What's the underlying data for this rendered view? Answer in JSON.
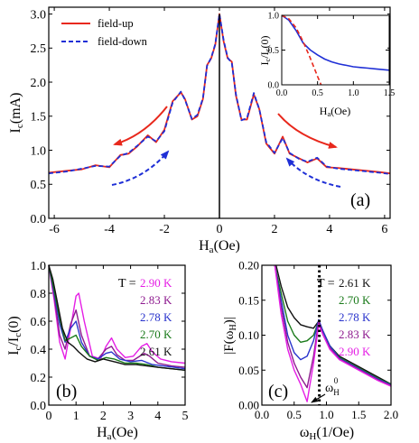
{
  "chart_data": [
    {
      "panel": "(a)",
      "type": "line",
      "xlabel": "Ha(Oe)",
      "ylabel": "Ic(mA)",
      "xlim": [
        -6.2,
        6.2
      ],
      "ylim": [
        0.0,
        3.1
      ],
      "xticks": [
        "-6",
        "-4",
        "-2",
        "0",
        "2",
        "4",
        "6"
      ],
      "xtick_values": [
        -6,
        -4,
        -2,
        0,
        2,
        4,
        6
      ],
      "yticks": [
        "0.0",
        "0.5",
        "1.0",
        "1.5",
        "2.0",
        "2.5",
        "3.0"
      ],
      "ytick_values": [
        0,
        0.5,
        1.0,
        1.5,
        2.0,
        2.5,
        3.0
      ],
      "legend": {
        "placement": "top-left",
        "entries": [
          "field-up",
          "field-down"
        ]
      },
      "series": [
        {
          "name": "field-up",
          "color": "#e8281c",
          "style": "solid",
          "x": [
            -6.2,
            -5.5,
            -5.0,
            -4.5,
            -4.0,
            -3.6,
            -3.3,
            -3.0,
            -2.6,
            -2.3,
            -2.0,
            -1.7,
            -1.4,
            -1.25,
            -1.0,
            -0.8,
            -0.6,
            -0.45,
            -0.3,
            -0.15,
            0.0,
            0.15,
            0.3,
            0.45,
            0.6,
            0.8,
            1.0,
            1.25,
            1.45,
            1.7,
            2.0,
            2.3,
            2.55,
            2.9,
            3.2,
            3.55,
            3.9,
            4.3,
            4.8,
            5.3,
            5.8,
            6.2
          ],
          "y": [
            0.67,
            0.7,
            0.72,
            0.78,
            0.75,
            0.93,
            0.95,
            1.05,
            1.22,
            1.12,
            1.3,
            1.72,
            1.85,
            1.75,
            1.45,
            1.5,
            1.75,
            2.25,
            2.35,
            2.55,
            3.0,
            2.6,
            2.35,
            2.3,
            1.8,
            1.45,
            1.45,
            1.82,
            1.6,
            1.1,
            0.95,
            1.2,
            0.95,
            0.88,
            0.82,
            0.88,
            0.75,
            0.74,
            0.72,
            0.7,
            0.68,
            0.66
          ]
        },
        {
          "name": "field-down",
          "color": "#1f2fd6",
          "style": "dashed",
          "x": [
            -6.2,
            -5.5,
            -5.0,
            -4.5,
            -4.0,
            -3.6,
            -3.3,
            -3.0,
            -2.6,
            -2.3,
            -2.0,
            -1.7,
            -1.4,
            -1.25,
            -1.0,
            -0.8,
            -0.6,
            -0.45,
            -0.3,
            -0.15,
            0.0,
            0.15,
            0.3,
            0.45,
            0.6,
            0.8,
            1.0,
            1.25,
            1.45,
            1.7,
            2.0,
            2.3,
            2.55,
            2.9,
            3.2,
            3.55,
            3.9,
            4.3,
            4.8,
            5.3,
            5.8,
            6.2
          ],
          "y": [
            0.66,
            0.69,
            0.73,
            0.77,
            0.76,
            0.92,
            0.96,
            1.06,
            1.2,
            1.13,
            1.28,
            1.7,
            1.86,
            1.74,
            1.46,
            1.52,
            1.76,
            2.24,
            2.36,
            2.56,
            3.0,
            2.62,
            2.36,
            2.28,
            1.82,
            1.44,
            1.47,
            1.84,
            1.6,
            1.12,
            0.96,
            1.18,
            0.96,
            0.87,
            0.83,
            0.89,
            0.76,
            0.73,
            0.71,
            0.69,
            0.67,
            0.65
          ]
        }
      ],
      "annotations": [
        "(a)"
      ],
      "inset": {
        "xlabel": "Ha(Oe)",
        "ylabel": "Ic/Ic(0)",
        "xlim": [
          0.0,
          1.5
        ],
        "ylim": [
          0.0,
          1.0
        ],
        "xticks": [
          "0.0",
          "0.5",
          "1.0",
          "1.5"
        ],
        "xtick_values": [
          0,
          0.5,
          1.0,
          1.5
        ],
        "yticks": [
          "0.0",
          "0.5",
          "1.0"
        ],
        "ytick_values": [
          0,
          0.5,
          1.0
        ],
        "series": [
          {
            "color": "#1f2fd6",
            "style": "solid",
            "x": [
              0.0,
              0.1,
              0.2,
              0.3,
              0.4,
              0.5,
              0.6,
              0.7,
              0.8,
              0.9,
              1.0,
              1.1,
              1.2,
              1.3,
              1.4,
              1.5
            ],
            "y": [
              1.0,
              0.93,
              0.78,
              0.6,
              0.5,
              0.43,
              0.37,
              0.33,
              0.3,
              0.28,
              0.26,
              0.25,
              0.24,
              0.23,
              0.22,
              0.21
            ]
          },
          {
            "color": "#e8281c",
            "style": "dashed",
            "x": [
              0.0,
              0.1,
              0.2,
              0.3,
              0.4,
              0.5,
              0.55
            ],
            "y": [
              1.0,
              0.95,
              0.82,
              0.62,
              0.38,
              0.12,
              0.0
            ]
          }
        ]
      }
    },
    {
      "panel": "(b)",
      "type": "line",
      "xlabel": "Ha(Oe)",
      "ylabel": "Ic/Ic(0)",
      "xlim": [
        0,
        5
      ],
      "ylim": [
        0.0,
        1.0
      ],
      "xticks": [
        "0",
        "1",
        "2",
        "3",
        "4",
        "5"
      ],
      "xtick_values": [
        0,
        1,
        2,
        3,
        4,
        5
      ],
      "yticks": [
        "0.0",
        "0.2",
        "0.4",
        "0.6",
        "0.8",
        "1.0"
      ],
      "ytick_values": [
        0,
        0.2,
        0.4,
        0.6,
        0.8,
        1.0
      ],
      "legend_title": "T =",
      "legend": {
        "placement": "top-right"
      },
      "series": [
        {
          "name": "2.90 K",
          "color": "#e51ee5",
          "x": [
            0,
            0.2,
            0.4,
            0.6,
            0.8,
            1.0,
            1.1,
            1.3,
            1.6,
            1.9,
            2.1,
            2.3,
            2.5,
            2.8,
            3.1,
            3.4,
            3.6,
            3.8,
            4.1,
            4.5,
            5.0
          ],
          "y": [
            1.0,
            0.75,
            0.45,
            0.33,
            0.55,
            0.78,
            0.8,
            0.6,
            0.35,
            0.33,
            0.42,
            0.48,
            0.4,
            0.34,
            0.35,
            0.42,
            0.44,
            0.38,
            0.33,
            0.31,
            0.3
          ]
        },
        {
          "name": "2.83 K",
          "color": "#8e1b8f",
          "x": [
            0,
            0.2,
            0.4,
            0.6,
            0.8,
            1.0,
            1.2,
            1.5,
            1.8,
            2.1,
            2.3,
            2.5,
            2.8,
            3.1,
            3.5,
            3.7,
            4.0,
            4.5,
            5.0
          ],
          "y": [
            1.0,
            0.78,
            0.5,
            0.4,
            0.58,
            0.68,
            0.5,
            0.35,
            0.33,
            0.4,
            0.42,
            0.36,
            0.32,
            0.32,
            0.37,
            0.35,
            0.3,
            0.28,
            0.27
          ]
        },
        {
          "name": "2.78 K",
          "color": "#2a34cc",
          "x": [
            0,
            0.2,
            0.4,
            0.6,
            0.8,
            1.0,
            1.2,
            1.5,
            1.8,
            2.1,
            2.3,
            2.6,
            3.0,
            3.4,
            3.8,
            4.2,
            4.6,
            5.0
          ],
          "y": [
            1.0,
            0.8,
            0.58,
            0.45,
            0.55,
            0.6,
            0.45,
            0.35,
            0.33,
            0.37,
            0.38,
            0.33,
            0.31,
            0.32,
            0.29,
            0.28,
            0.27,
            0.26
          ]
        },
        {
          "name": "2.70 K",
          "color": "#1a7a1a",
          "x": [
            0,
            0.2,
            0.4,
            0.6,
            0.8,
            1.0,
            1.2,
            1.5,
            1.8,
            2.1,
            2.4,
            2.8,
            3.2,
            3.6,
            4.0,
            4.5,
            5.0
          ],
          "y": [
            1.0,
            0.82,
            0.62,
            0.46,
            0.48,
            0.5,
            0.42,
            0.35,
            0.32,
            0.34,
            0.33,
            0.3,
            0.3,
            0.29,
            0.27,
            0.26,
            0.25
          ]
        },
        {
          "name": "2.61 K",
          "color": "#111111",
          "x": [
            0,
            0.15,
            0.3,
            0.5,
            0.7,
            0.9,
            1.1,
            1.4,
            1.7,
            2.0,
            2.4,
            2.8,
            3.2,
            3.6,
            4.0,
            4.5,
            5.0
          ],
          "y": [
            1.0,
            0.9,
            0.75,
            0.55,
            0.45,
            0.42,
            0.38,
            0.33,
            0.31,
            0.33,
            0.31,
            0.29,
            0.29,
            0.28,
            0.27,
            0.26,
            0.25
          ]
        }
      ],
      "annotations": [
        "(b)"
      ]
    },
    {
      "panel": "(c)",
      "type": "line",
      "xlabel": "ωH(1/Oe)",
      "ylabel": "|F(ωH)|",
      "xlim": [
        0.0,
        2.0
      ],
      "ylim": [
        0.0,
        0.2
      ],
      "xticks": [
        "0.0",
        "0.5",
        "1.0",
        "1.5",
        "2.0"
      ],
      "xtick_values": [
        0,
        0.5,
        1.0,
        1.5,
        2.0
      ],
      "yticks": [
        "0.00",
        "0.05",
        "0.10",
        "0.15",
        "0.20"
      ],
      "ytick_values": [
        0,
        0.05,
        0.1,
        0.15,
        0.2
      ],
      "legend_title": "T =",
      "legend": {
        "placement": "top-right"
      },
      "vline_x": 0.89,
      "series": [
        {
          "name": "2.61 K",
          "color": "#111111",
          "x": [
            0.22,
            0.3,
            0.4,
            0.5,
            0.6,
            0.7,
            0.8,
            0.88,
            0.95,
            1.05,
            1.2,
            1.4,
            1.6,
            1.8,
            2.0
          ],
          "y": [
            0.2,
            0.17,
            0.14,
            0.125,
            0.115,
            0.112,
            0.11,
            0.12,
            0.105,
            0.085,
            0.07,
            0.06,
            0.05,
            0.04,
            0.03
          ]
        },
        {
          "name": "2.70 K",
          "color": "#1a7a1a",
          "x": [
            0.2,
            0.3,
            0.4,
            0.5,
            0.6,
            0.7,
            0.8,
            0.88,
            0.95,
            1.05,
            1.2,
            1.4,
            1.6,
            1.8,
            2.0
          ],
          "y": [
            0.2,
            0.16,
            0.12,
            0.1,
            0.09,
            0.092,
            0.1,
            0.12,
            0.105,
            0.085,
            0.068,
            0.058,
            0.048,
            0.038,
            0.03
          ]
        },
        {
          "name": "2.78 K",
          "color": "#2a34cc",
          "x": [
            0.2,
            0.3,
            0.4,
            0.5,
            0.6,
            0.7,
            0.8,
            0.88,
            0.95,
            1.05,
            1.2,
            1.4,
            1.6,
            1.8,
            2.0
          ],
          "y": [
            0.2,
            0.15,
            0.1,
            0.075,
            0.065,
            0.07,
            0.092,
            0.122,
            0.105,
            0.085,
            0.067,
            0.057,
            0.047,
            0.037,
            0.029
          ]
        },
        {
          "name": "2.83 K",
          "color": "#8e1b8f",
          "x": [
            0.2,
            0.3,
            0.4,
            0.5,
            0.6,
            0.7,
            0.8,
            0.88,
            0.95,
            1.05,
            1.2,
            1.4,
            1.6,
            1.8,
            2.0
          ],
          "y": [
            0.2,
            0.14,
            0.09,
            0.06,
            0.04,
            0.025,
            0.07,
            0.12,
            0.1,
            0.082,
            0.066,
            0.056,
            0.046,
            0.036,
            0.028
          ]
        },
        {
          "name": "2.90 K",
          "color": "#e51ee5",
          "x": [
            0.2,
            0.3,
            0.4,
            0.5,
            0.6,
            0.7,
            0.8,
            0.88,
            0.95,
            1.05,
            1.2,
            1.4,
            1.6,
            1.8,
            2.0
          ],
          "y": [
            0.2,
            0.13,
            0.08,
            0.05,
            0.03,
            0.005,
            0.06,
            0.115,
            0.1,
            0.08,
            0.065,
            0.055,
            0.045,
            0.035,
            0.027
          ]
        }
      ],
      "annotations": [
        "(c)",
        "ωH0"
      ]
    }
  ]
}
